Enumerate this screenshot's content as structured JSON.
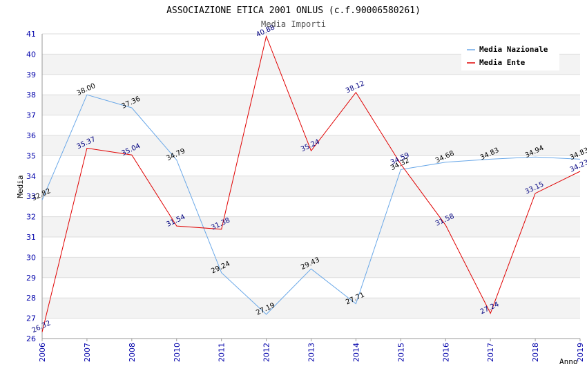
{
  "chart_data": {
    "type": "line",
    "title": "ASSOCIAZIONE ETICA 2001 ONLUS (c.f.90006580261)",
    "subtitle": "Media Importi",
    "xlabel": "Anno",
    "ylabel": "Media",
    "ylim": [
      26,
      41
    ],
    "grid": true,
    "legend_position": "top-right",
    "categories": [
      "2006",
      "2007",
      "2008",
      "2010",
      "2011",
      "2012",
      "2013",
      "2014",
      "2015",
      "2016",
      "2017",
      "2018",
      "2019"
    ],
    "series": [
      {
        "name": "Media Nazionale",
        "color": "#6aa8e8",
        "values": [
          32.82,
          38.0,
          37.36,
          34.79,
          29.24,
          27.19,
          29.43,
          27.71,
          34.32,
          34.68,
          34.83,
          34.94,
          34.83
        ],
        "labels": [
          "32.82",
          "38.00",
          "37.36",
          "34.79",
          "29.24",
          "27.19",
          "29.43",
          "27.71",
          "34.32",
          "34.68",
          "34.83",
          "34.94",
          "34.83"
        ]
      },
      {
        "name": "Media Ente",
        "color": "#e00000",
        "values": [
          26.32,
          35.37,
          35.04,
          31.54,
          31.38,
          40.88,
          35.24,
          38.12,
          34.59,
          31.58,
          27.24,
          33.15,
          34.23
        ],
        "labels": [
          "26.32",
          "35.37",
          "35.04",
          "31.54",
          "31.38",
          "40.88",
          "35.24",
          "38.12",
          "34.59",
          "31.58",
          "27.24",
          "33.15",
          "34.23"
        ]
      }
    ]
  }
}
